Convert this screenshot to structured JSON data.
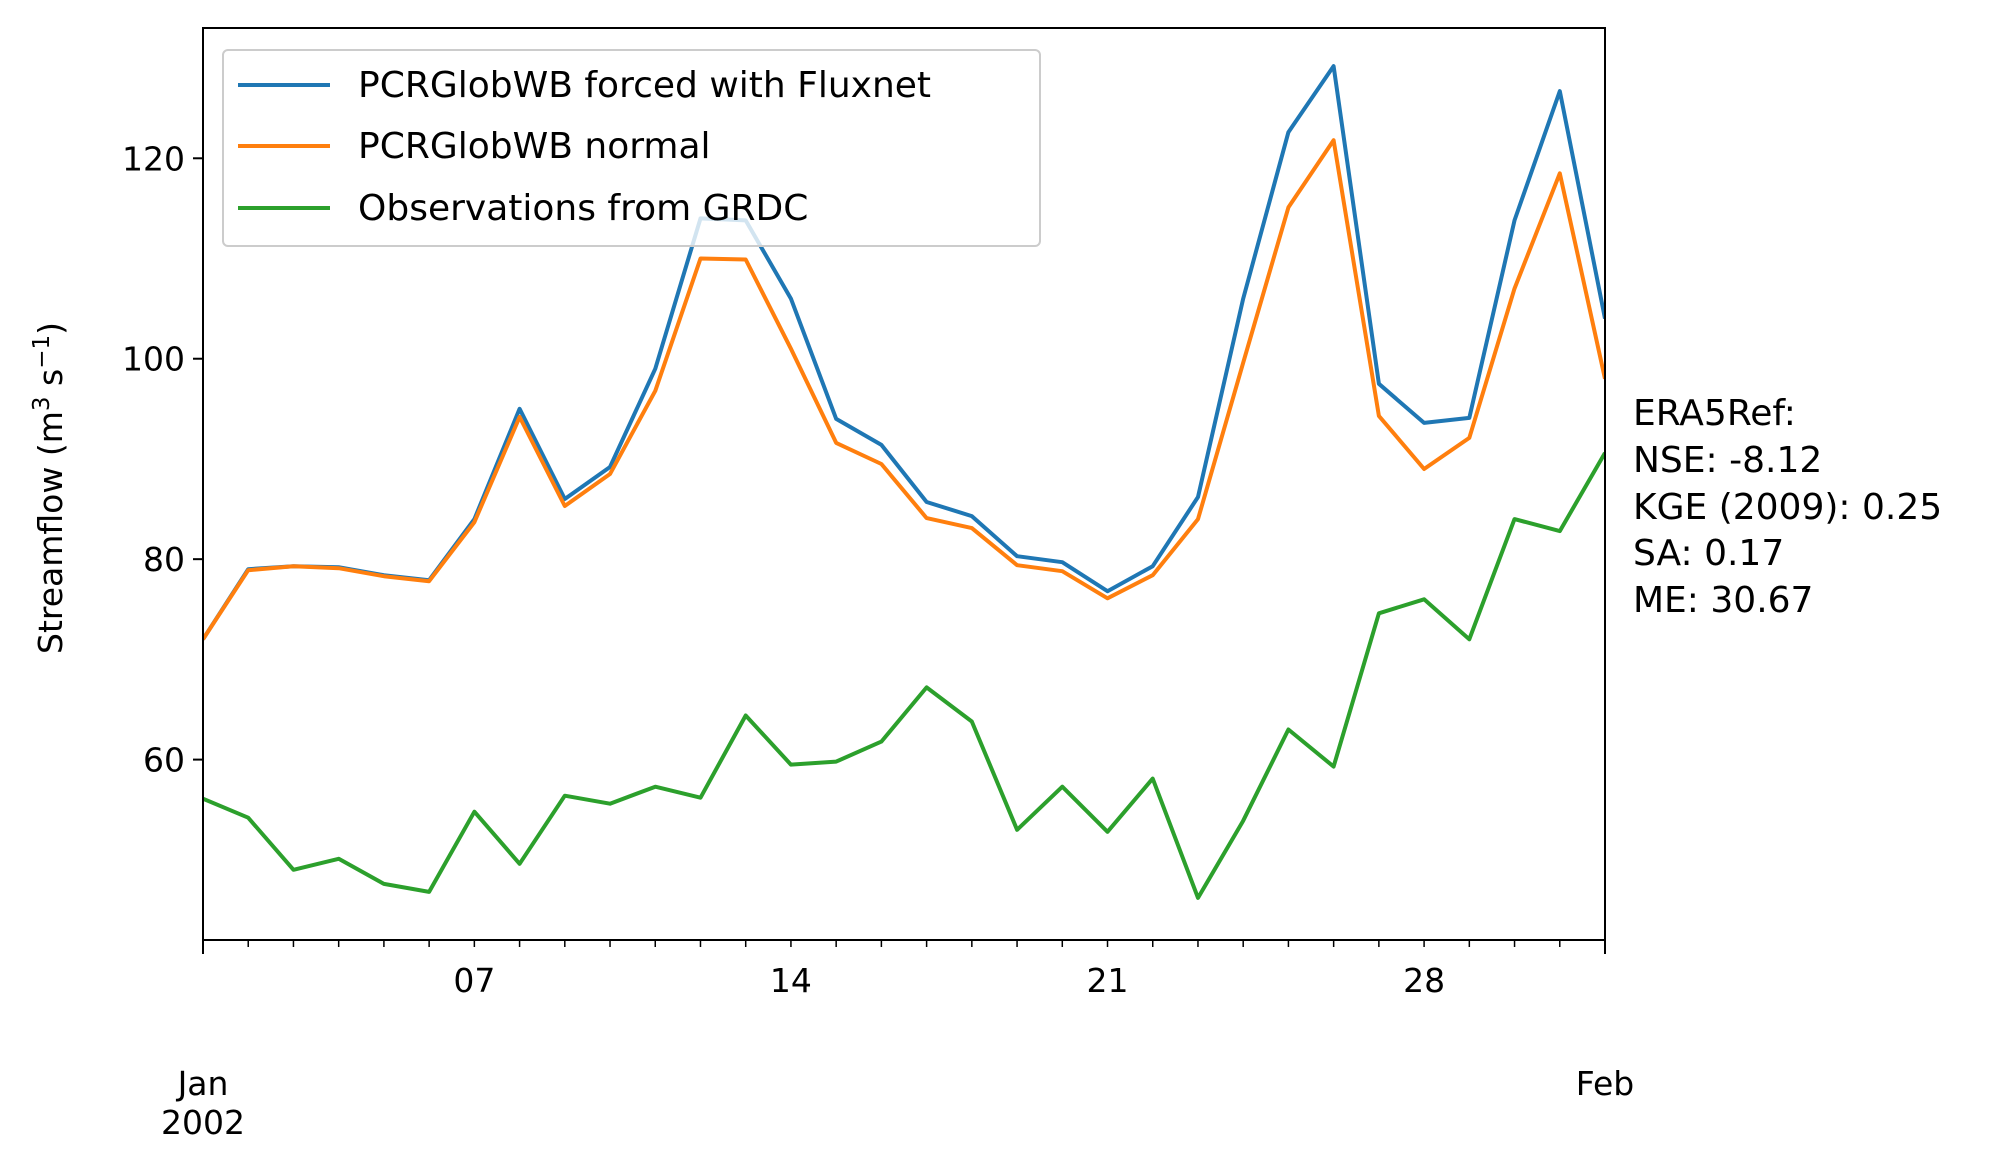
{
  "chart_data": {
    "type": "line",
    "ylabel": {
      "prefix": "Streamflow (m",
      "sup1": "3",
      "mid": " s",
      "sup2": "−1",
      "suffix": ")"
    },
    "xlabel": "",
    "ylim": [
      42,
      133
    ],
    "yticks": [
      60,
      80,
      100,
      120
    ],
    "x_start": "2002-01-01",
    "x_end": "2002-02-01",
    "xticks_major": [
      {
        "day": 1,
        "line1": "Jan",
        "line2": "2002"
      },
      {
        "day": 32,
        "line1": "Feb",
        "line2": ""
      }
    ],
    "xticks_minor_labeled": [
      {
        "day": 7,
        "label": "07"
      },
      {
        "day": 14,
        "label": "14"
      },
      {
        "day": 21,
        "label": "21"
      },
      {
        "day": 28,
        "label": "28"
      }
    ],
    "series": [
      {
        "name": "PCRGlobWB forced with Fluxnet",
        "color": "#1f77b4",
        "values": [
          72.0,
          79.0,
          79.3,
          79.2,
          78.4,
          77.9,
          84.0,
          95.0,
          86.0,
          89.2,
          99.0,
          114.0,
          113.8,
          106.0,
          94.0,
          91.4,
          85.7,
          84.3,
          80.3,
          79.7,
          76.8,
          79.3,
          86.2,
          106.0,
          122.6,
          129.2,
          97.5,
          93.6,
          94.1,
          113.8,
          126.7,
          104.0
        ]
      },
      {
        "name": "PCRGlobWB normal",
        "color": "#ff7f0e",
        "values": [
          72.0,
          78.9,
          79.3,
          79.1,
          78.3,
          77.8,
          83.7,
          94.2,
          85.3,
          88.5,
          96.8,
          110.0,
          109.9,
          101.0,
          91.6,
          89.5,
          84.1,
          83.1,
          79.4,
          78.8,
          76.1,
          78.4,
          84.0,
          99.6,
          115.1,
          121.8,
          94.3,
          89.0,
          92.1,
          107.0,
          118.5,
          98.0
        ]
      },
      {
        "name": "Observations from GRDC",
        "color": "#2ca02c",
        "values": [
          56.1,
          54.2,
          49.0,
          50.1,
          47.6,
          46.8,
          54.8,
          49.6,
          56.4,
          55.6,
          57.3,
          56.2,
          64.4,
          59.5,
          59.8,
          61.8,
          67.2,
          63.8,
          53.0,
          57.3,
          52.8,
          58.1,
          46.2,
          53.9,
          63.0,
          59.3,
          74.6,
          76.0,
          72.0,
          84.0,
          82.8,
          90.6
        ]
      }
    ],
    "legend_placement": "upper-left",
    "annotation": [
      "ERA5Ref:",
      "NSE: -8.12",
      "KGE (2009): 0.25",
      "SA: 0.17",
      "ME: 30.67"
    ]
  }
}
